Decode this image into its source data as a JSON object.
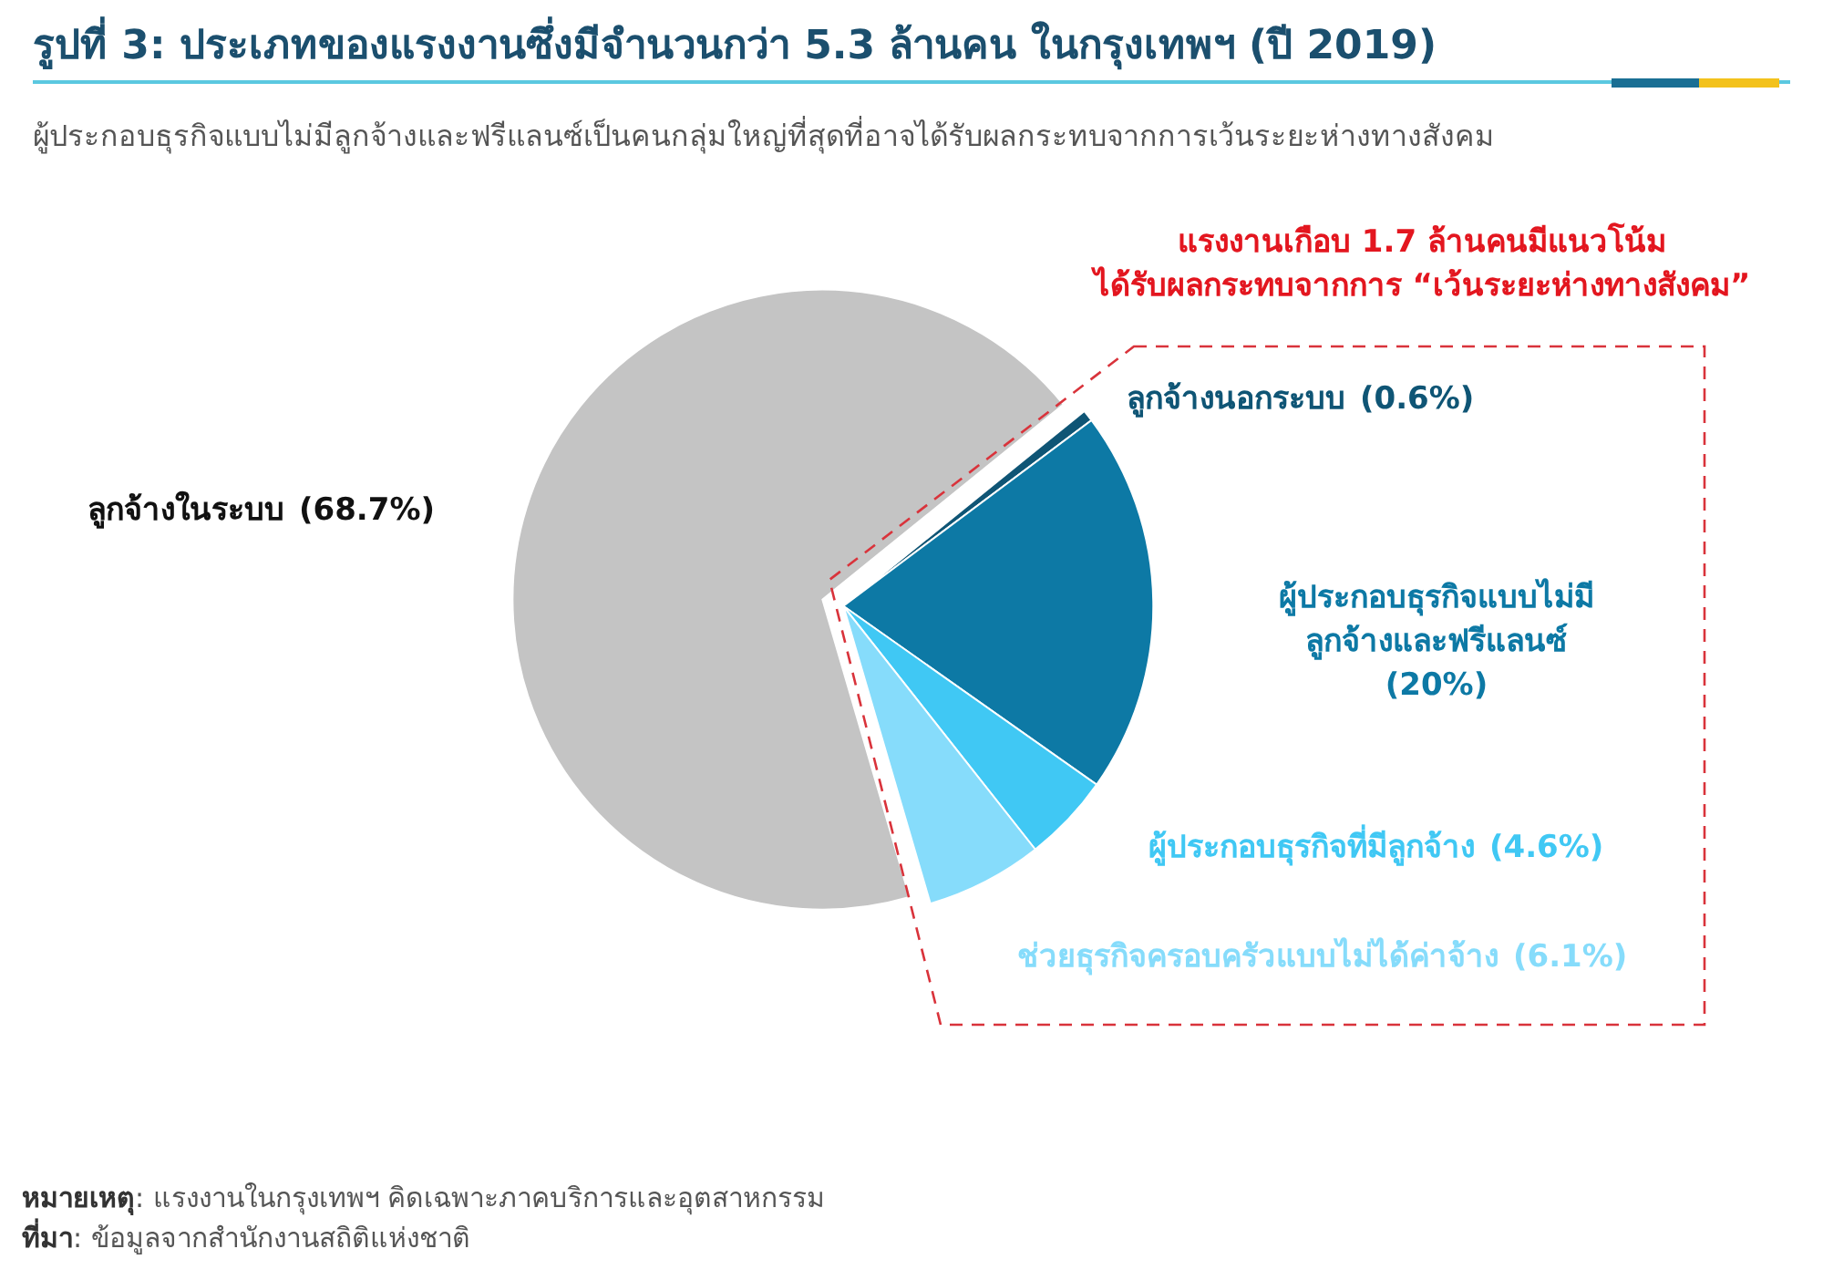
{
  "chart_data": {
    "type": "pie",
    "title": "รูปที่ 3: ประเภทของแรงงานซึ่งมีจำนวนกว่า 5.3 ล้านคน ในกรุงเทพฯ (ปี 2019)",
    "subtitle": "ผู้ประกอบธุรกิจแบบไม่มีลูกจ้างและฟรีแลนซ์เป็นคนกลุ่มใหญ่ที่สุดที่อาจได้รับผลกระทบจากการเว้นระยะห่างทางสังคม",
    "categories": [
      "ลูกจ้างในระบบ",
      "ลูกจ้างนอกระบบ",
      "ผู้ประกอบธุรกิจแบบไม่มี\nลูกจ้างและฟรีแลนซ์",
      "ผู้ประกอบธุรกิจที่มีลูกจ้าง",
      "ช่วยธุรกิจครอบครัวแบบไม่ได้ค่าจ้าง"
    ],
    "values": [
      68.7,
      0.6,
      20,
      4.6,
      6.1
    ],
    "colors": [
      "#c4c4c4",
      "#0f5575",
      "#0d79a5",
      "#40c8f4",
      "#86dcfb"
    ],
    "value_labels": [
      "(68.7%)",
      "(0.6%)",
      "(20%)",
      "(4.6%)",
      "(6.1%)"
    ],
    "annotations": [
      "แรงงานเกือบ 1.7 ล้านคนมีแนวโน้ม\nได้รับผลกระทบจากการ “เว้นระยะห่างทางสังคม”",
      "หมายเหตุ: แรงงานในกรุงเทพฯ คิดเฉพาะภาคบริการและอุตสาหกรรม",
      "ที่มา: ข้อมูลจากสำนักงานสถิติแห่งชาติ"
    ]
  }
}
